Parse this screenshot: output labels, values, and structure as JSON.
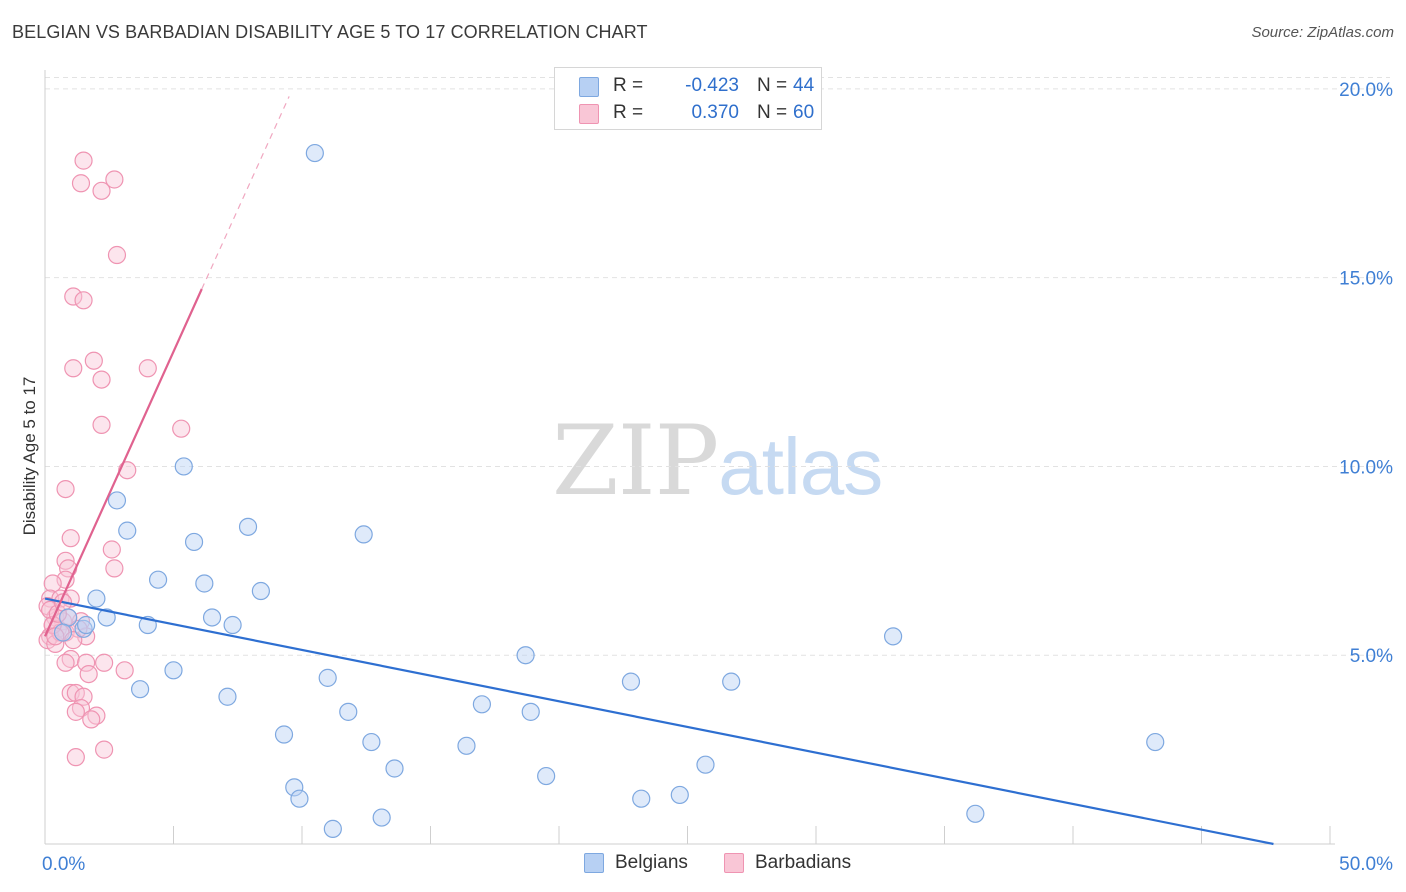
{
  "header": {
    "title": "BELGIAN VS BARBADIAN DISABILITY AGE 5 TO 17 CORRELATION CHART",
    "source": "Source: ZipAtlas.com"
  },
  "watermark": {
    "zip": "ZIP",
    "atlas": "atlas"
  },
  "legend": {
    "r_label": "R =",
    "n_label": "N =",
    "rows": [
      {
        "name": "Belgians",
        "r": "-0.423",
        "n": "44",
        "color": "#7ea8e0"
      },
      {
        "name": "Barbadians",
        "r": "0.370",
        "n": "60",
        "color": "#ef94b2"
      }
    ]
  },
  "chart_data": {
    "type": "scatter",
    "title": "BELGIAN VS BARBADIAN DISABILITY AGE 5 TO 17 CORRELATION CHART",
    "xlabel": "",
    "ylabel": "Disability Age 5 to 17",
    "xlim": [
      0,
      50
    ],
    "ylim": [
      0,
      20.5
    ],
    "x_tick_labels": [
      {
        "value": 0,
        "label": "0.0%"
      },
      {
        "value": 50,
        "label": "50.0%"
      }
    ],
    "y_tick_labels": [
      {
        "value": 5,
        "label": "5.0%"
      },
      {
        "value": 10,
        "label": "10.0%"
      },
      {
        "value": 15,
        "label": "15.0%"
      },
      {
        "value": 20,
        "label": "20.0%"
      }
    ],
    "grid": true,
    "legend_position": "top-center",
    "series": [
      {
        "name": "Belgians",
        "color": "#7ea8e0",
        "line_color": "#2e6fd1",
        "trend": {
          "x": [
            0,
            47.8
          ],
          "y": [
            6.5,
            0.0
          ]
        },
        "points": [
          [
            10.5,
            18.3
          ],
          [
            5.4,
            10.0
          ],
          [
            2.8,
            9.1
          ],
          [
            3.2,
            8.3
          ],
          [
            7.9,
            8.4
          ],
          [
            12.4,
            8.2
          ],
          [
            5.8,
            8.0
          ],
          [
            4.4,
            7.0
          ],
          [
            6.2,
            6.9
          ],
          [
            8.4,
            6.7
          ],
          [
            2.0,
            6.5
          ],
          [
            0.9,
            6.0
          ],
          [
            2.4,
            6.0
          ],
          [
            6.5,
            6.0
          ],
          [
            4.0,
            5.8
          ],
          [
            7.3,
            5.8
          ],
          [
            1.5,
            5.7
          ],
          [
            0.7,
            5.6
          ],
          [
            33.0,
            5.5
          ],
          [
            18.7,
            5.0
          ],
          [
            5.0,
            4.6
          ],
          [
            11.0,
            4.4
          ],
          [
            22.8,
            4.3
          ],
          [
            26.7,
            4.3
          ],
          [
            3.7,
            4.1
          ],
          [
            7.1,
            3.9
          ],
          [
            17.0,
            3.7
          ],
          [
            11.8,
            3.5
          ],
          [
            18.9,
            3.5
          ],
          [
            9.3,
            2.9
          ],
          [
            12.7,
            2.7
          ],
          [
            16.4,
            2.6
          ],
          [
            43.2,
            2.7
          ],
          [
            25.7,
            2.1
          ],
          [
            13.6,
            2.0
          ],
          [
            19.5,
            1.8
          ],
          [
            9.7,
            1.5
          ],
          [
            9.9,
            1.2
          ],
          [
            24.7,
            1.3
          ],
          [
            23.2,
            1.2
          ],
          [
            36.2,
            0.8
          ],
          [
            13.1,
            0.7
          ],
          [
            11.2,
            0.4
          ],
          [
            1.6,
            5.8
          ]
        ]
      },
      {
        "name": "Barbadians",
        "color": "#ef94b2",
        "line_color": "#e0628f",
        "trend": {
          "x": [
            0,
            6.1
          ],
          "y": [
            5.5,
            14.7
          ]
        },
        "trend_extension": {
          "x": [
            6.1,
            9.5
          ],
          "y": [
            14.7,
            19.8
          ]
        },
        "points": [
          [
            1.5,
            18.1
          ],
          [
            1.4,
            17.5
          ],
          [
            2.7,
            17.6
          ],
          [
            2.2,
            17.3
          ],
          [
            2.8,
            15.6
          ],
          [
            1.1,
            14.5
          ],
          [
            1.5,
            14.4
          ],
          [
            1.9,
            12.8
          ],
          [
            1.1,
            12.6
          ],
          [
            4.0,
            12.6
          ],
          [
            2.2,
            12.3
          ],
          [
            2.2,
            11.1
          ],
          [
            5.3,
            11.0
          ],
          [
            3.2,
            9.9
          ],
          [
            0.8,
            9.4
          ],
          [
            2.6,
            7.8
          ],
          [
            1.0,
            8.1
          ],
          [
            0.8,
            7.5
          ],
          [
            2.7,
            7.3
          ],
          [
            0.9,
            7.3
          ],
          [
            0.8,
            7.0
          ],
          [
            0.3,
            6.9
          ],
          [
            0.2,
            6.5
          ],
          [
            0.6,
            6.5
          ],
          [
            1.0,
            6.5
          ],
          [
            0.1,
            6.3
          ],
          [
            0.4,
            6.0
          ],
          [
            0.7,
            5.9
          ],
          [
            1.4,
            5.9
          ],
          [
            0.3,
            5.8
          ],
          [
            0.5,
            5.7
          ],
          [
            0.8,
            5.6
          ],
          [
            0.2,
            5.5
          ],
          [
            1.6,
            5.5
          ],
          [
            0.1,
            5.4
          ],
          [
            0.4,
            5.3
          ],
          [
            1.0,
            4.9
          ],
          [
            0.8,
            4.8
          ],
          [
            1.6,
            4.8
          ],
          [
            2.3,
            4.8
          ],
          [
            3.1,
            4.6
          ],
          [
            1.7,
            4.5
          ],
          [
            1.0,
            4.0
          ],
          [
            1.2,
            4.0
          ],
          [
            1.5,
            3.9
          ],
          [
            1.4,
            3.6
          ],
          [
            1.2,
            3.5
          ],
          [
            2.0,
            3.4
          ],
          [
            1.8,
            3.3
          ],
          [
            2.3,
            2.5
          ],
          [
            1.2,
            2.3
          ],
          [
            0.2,
            6.2
          ],
          [
            0.6,
            5.6
          ],
          [
            0.3,
            5.8
          ],
          [
            0.9,
            6.0
          ],
          [
            0.5,
            6.1
          ],
          [
            0.4,
            5.5
          ],
          [
            1.3,
            5.7
          ],
          [
            0.7,
            6.4
          ],
          [
            1.1,
            5.4
          ]
        ]
      }
    ]
  }
}
